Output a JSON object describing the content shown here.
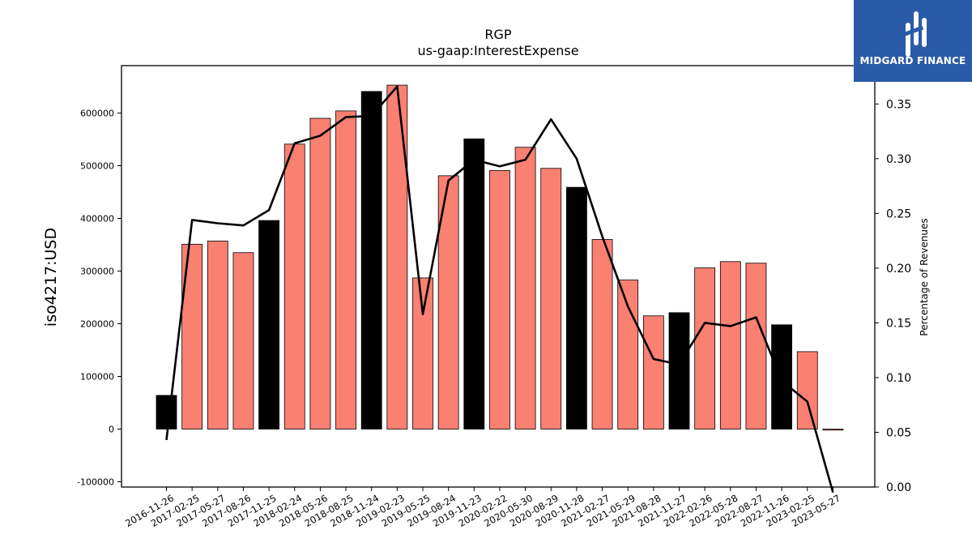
{
  "chart_data": {
    "type": "bar",
    "title": "RGP",
    "subtitle": "us-gaap:InterestExpense",
    "ylabel": "iso4217:USD",
    "y2label": "Percentage of Revenues",
    "ylim": [
      -110000,
      690000
    ],
    "y2lim": [
      0.0,
      0.385
    ],
    "yticks": [
      -100000,
      0,
      100000,
      200000,
      300000,
      400000,
      500000,
      600000
    ],
    "y2ticks": [
      0.0,
      0.05,
      0.1,
      0.15,
      0.2,
      0.25,
      0.3,
      0.35
    ],
    "y2tick_labels": [
      "0.00",
      "0.05",
      "0.10",
      "0.15",
      "0.20",
      "0.25",
      "0.30",
      "0.35"
    ],
    "categories": [
      "2016-11-26",
      "2017-02-25",
      "2017-05-27",
      "2017-08-26",
      "2017-11-25",
      "2018-02-24",
      "2018-05-26",
      "2018-08-25",
      "2018-11-24",
      "2019-02-23",
      "2019-05-25",
      "2019-08-24",
      "2019-11-23",
      "2020-02-22",
      "2020-05-30",
      "2020-08-29",
      "2020-11-28",
      "2021-02-27",
      "2021-05-29",
      "2021-08-28",
      "2021-11-27",
      "2022-02-26",
      "2022-05-28",
      "2022-08-27",
      "2022-11-26",
      "2023-02-25",
      "2023-05-27"
    ],
    "series": [
      {
        "type": "bar",
        "values": [
          64000,
          351000,
          357000,
          335000,
          396000,
          541000,
          590000,
          604000,
          641000,
          653000,
          287000,
          481000,
          551000,
          491000,
          535000,
          495000,
          459000,
          360000,
          283000,
          215000,
          221000,
          306000,
          318000,
          315000,
          198000,
          147000,
          -2000
        ],
        "colors": [
          "#000000",
          "#fa8072",
          "#fa8072",
          "#fa8072",
          "#000000",
          "#fa8072",
          "#fa8072",
          "#fa8072",
          "#000000",
          "#fa8072",
          "#fa8072",
          "#fa8072",
          "#000000",
          "#fa8072",
          "#fa8072",
          "#fa8072",
          "#000000",
          "#fa8072",
          "#fa8072",
          "#fa8072",
          "#000000",
          "#fa8072",
          "#fa8072",
          "#fa8072",
          "#000000",
          "#fa8072",
          "#fa8072"
        ]
      },
      {
        "type": "line",
        "axis": "y2",
        "color": "#000000",
        "values": [
          0.043,
          0.244,
          0.241,
          0.239,
          0.253,
          0.314,
          0.321,
          0.338,
          0.339,
          0.366,
          0.158,
          0.28,
          0.299,
          0.293,
          0.299,
          0.336,
          0.3,
          0.229,
          0.165,
          0.117,
          0.112,
          0.15,
          0.147,
          0.155,
          0.097,
          0.078,
          -0.005
        ]
      }
    ],
    "grid": false,
    "legend": "none"
  },
  "logo": {
    "text": "MIDGARD FINANCE",
    "bg_color": "#2a5ba8"
  }
}
